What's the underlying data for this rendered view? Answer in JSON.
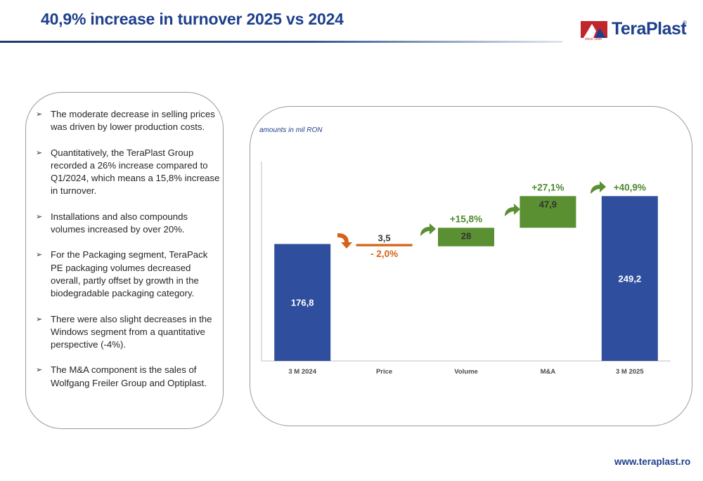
{
  "header": {
    "title": "40,9% increase in turnover 2025 vs 2024"
  },
  "logo": {
    "name": "TeraPlast",
    "registered": "®",
    "since": "since 1896"
  },
  "bullets": [
    "The moderate decrease in selling prices was driven by lower production costs.",
    "Quantitatively, the TeraPlast Group recorded a 26% increase compared to Q1/2024, which means a 15,8% increase in turnover.",
    "Installations and also compounds volumes increased by over 20%.",
    "For the Packaging segment, TeraPack PE packaging volumes decreased overall, partly offset by growth in the biodegradable packaging category.",
    "There were also slight decreases in the Windows segment from a quantitative perspective (-4%).",
    "The M&A component is the sales of Wolfgang Freiler Group and Optiplast."
  ],
  "chart_note": "amounts in mil RON",
  "chart_data": {
    "type": "bar",
    "subtype": "waterfall",
    "categories": [
      "3 M 2024",
      "Price",
      "Volume",
      "M&A",
      "3 M 2025"
    ],
    "values": [
      176.8,
      -3.5,
      28,
      47.9,
      249.2
    ],
    "bar_kind": [
      "total",
      "delta",
      "delta",
      "delta",
      "total"
    ],
    "value_labels": [
      "176,8",
      "3,5",
      "28",
      "47,9",
      "249,2"
    ],
    "change_labels": [
      "",
      "- 2,0%",
      "+15,8%",
      "+27,1%",
      "+40,9%"
    ],
    "legend": "none",
    "grid": false,
    "colors": {
      "total": "#2f4f9e",
      "decrease": "#d4641a",
      "increase": "#5a8f32",
      "increase_text": "#4e8a2e",
      "decrease_text": "#d4641a",
      "axis": "#bfbfbf"
    }
  },
  "footer": {
    "url": "www.teraplast.ro"
  }
}
